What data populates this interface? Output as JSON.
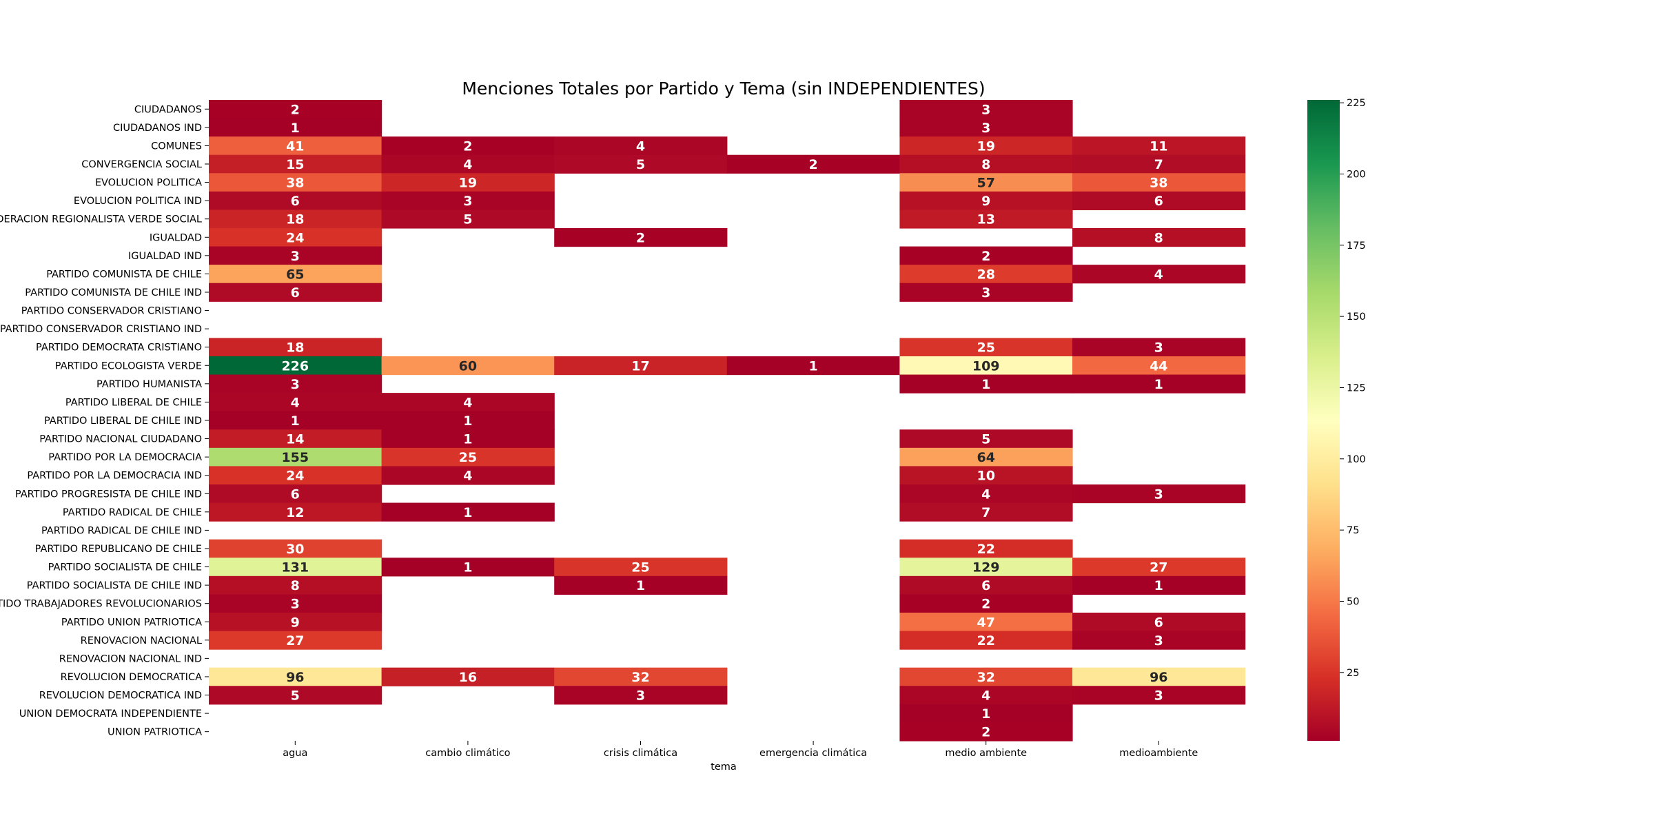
{
  "chart_data": {
    "type": "heatmap",
    "title": "Menciones Totales por Partido y Tema (sin INDEPENDIENTES)",
    "xlabel": "tema",
    "ylabel": "",
    "columns": [
      "agua",
      "cambio climático",
      "crisis climática",
      "emergencia climática",
      "medio ambiente",
      "medioambiente"
    ],
    "rows": [
      "CIUDADANOS",
      "CIUDADANOS IND",
      "COMUNES",
      "CONVERGENCIA SOCIAL",
      "EVOLUCION POLITICA",
      "EVOLUCION POLITICA IND",
      "FEDERACION REGIONALISTA VERDE SOCIAL",
      "IGUALDAD",
      "IGUALDAD IND",
      "PARTIDO COMUNISTA DE CHILE",
      "PARTIDO COMUNISTA DE CHILE IND",
      "PARTIDO CONSERVADOR CRISTIANO",
      "PARTIDO CONSERVADOR CRISTIANO IND",
      "PARTIDO DEMOCRATA CRISTIANO",
      "PARTIDO ECOLOGISTA VERDE",
      "PARTIDO HUMANISTA",
      "PARTIDO LIBERAL DE CHILE",
      "PARTIDO LIBERAL DE CHILE IND",
      "PARTIDO NACIONAL CIUDADANO",
      "PARTIDO POR LA DEMOCRACIA",
      "PARTIDO POR LA DEMOCRACIA IND",
      "PARTIDO PROGRESISTA DE CHILE IND",
      "PARTIDO RADICAL DE CHILE",
      "PARTIDO RADICAL DE CHILE IND",
      "PARTIDO REPUBLICANO DE CHILE",
      "PARTIDO SOCIALISTA DE CHILE",
      "PARTIDO SOCIALISTA DE CHILE IND",
      "PARTIDO TRABAJADORES REVOLUCIONARIOS",
      "PARTIDO UNION PATRIOTICA",
      "RENOVACION NACIONAL",
      "RENOVACION NACIONAL IND",
      "REVOLUCION DEMOCRATICA",
      "REVOLUCION DEMOCRATICA IND",
      "UNION DEMOCRATA INDEPENDIENTE",
      "UNION PATRIOTICA"
    ],
    "values": [
      [
        2,
        null,
        null,
        null,
        3,
        null
      ],
      [
        1,
        null,
        null,
        null,
        3,
        null
      ],
      [
        41,
        2,
        4,
        null,
        19,
        11
      ],
      [
        15,
        4,
        5,
        2,
        8,
        7
      ],
      [
        38,
        19,
        null,
        null,
        57,
        38
      ],
      [
        6,
        3,
        null,
        null,
        9,
        6
      ],
      [
        18,
        5,
        null,
        null,
        13,
        null
      ],
      [
        24,
        null,
        2,
        null,
        null,
        8
      ],
      [
        3,
        null,
        null,
        null,
        2,
        null
      ],
      [
        65,
        null,
        null,
        null,
        28,
        4
      ],
      [
        6,
        null,
        null,
        null,
        3,
        null
      ],
      [
        null,
        null,
        null,
        null,
        null,
        null
      ],
      [
        null,
        null,
        null,
        null,
        null,
        null
      ],
      [
        18,
        null,
        null,
        null,
        25,
        3
      ],
      [
        226,
        60,
        17,
        1,
        109,
        44
      ],
      [
        3,
        null,
        null,
        null,
        1,
        1
      ],
      [
        4,
        4,
        null,
        null,
        null,
        null
      ],
      [
        1,
        1,
        null,
        null,
        null,
        null
      ],
      [
        14,
        1,
        null,
        null,
        5,
        null
      ],
      [
        155,
        25,
        null,
        null,
        64,
        null
      ],
      [
        24,
        4,
        null,
        null,
        10,
        null
      ],
      [
        6,
        null,
        null,
        null,
        4,
        3
      ],
      [
        12,
        1,
        null,
        null,
        7,
        null
      ],
      [
        null,
        null,
        null,
        null,
        null,
        null
      ],
      [
        30,
        null,
        null,
        null,
        22,
        null
      ],
      [
        131,
        1,
        25,
        null,
        129,
        27
      ],
      [
        8,
        null,
        1,
        null,
        6,
        1
      ],
      [
        3,
        null,
        null,
        null,
        2,
        null
      ],
      [
        9,
        null,
        null,
        null,
        47,
        6
      ],
      [
        27,
        null,
        null,
        null,
        22,
        3
      ],
      [
        null,
        null,
        null,
        null,
        null,
        null
      ],
      [
        96,
        16,
        32,
        null,
        32,
        96
      ],
      [
        5,
        null,
        3,
        null,
        4,
        3
      ],
      [
        null,
        null,
        null,
        null,
        1,
        null
      ],
      [
        null,
        null,
        null,
        null,
        2,
        null
      ]
    ],
    "colormap": "RdYlGn",
    "vmin": 1,
    "vmax": 226,
    "colorbar_ticks": [
      25,
      50,
      75,
      100,
      125,
      150,
      175,
      200,
      225
    ],
    "missing_cells": "blank"
  }
}
